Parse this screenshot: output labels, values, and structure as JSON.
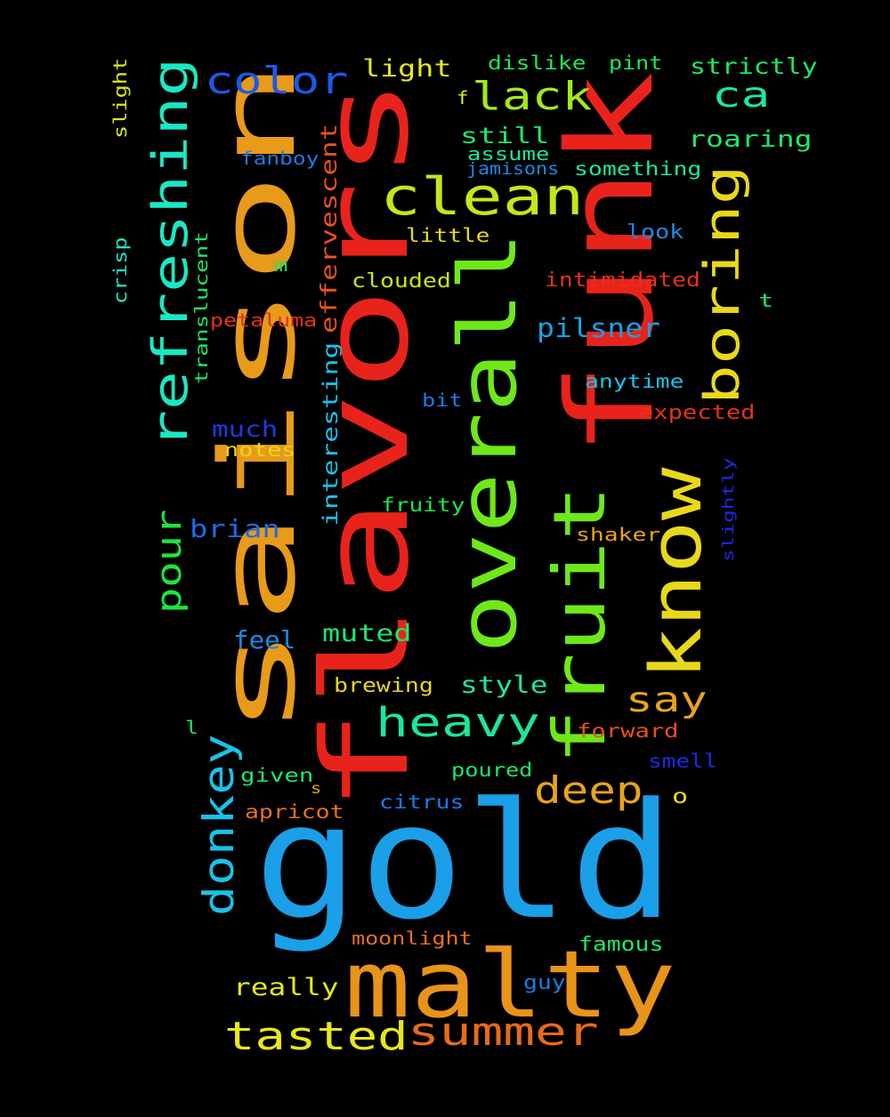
{
  "background_color": "#000000",
  "words": [
    {
      "text": "flavors",
      "color": "#e8231b",
      "vertical": true
    },
    {
      "text": "saison",
      "color": "#e89a1a",
      "vertical": true
    },
    {
      "text": "gold",
      "color": "#1a9fe8",
      "vertical": false
    },
    {
      "text": "funk",
      "color": "#e8231b",
      "vertical": true
    },
    {
      "text": "overall",
      "color": "#6ee81a",
      "vertical": true
    },
    {
      "text": "fruit",
      "color": "#6ee81a",
      "vertical": true
    },
    {
      "text": "malty",
      "color": "#e8931a",
      "vertical": false
    },
    {
      "text": "know",
      "color": "#e8d81a",
      "vertical": true
    },
    {
      "text": "refreshing",
      "color": "#1ae8c2",
      "vertical": true
    },
    {
      "text": "clean",
      "color": "#c2e81a",
      "vertical": false
    },
    {
      "text": "boring",
      "color": "#e8d81a",
      "vertical": true
    },
    {
      "text": "heavy",
      "color": "#1ae89a",
      "vertical": false
    },
    {
      "text": "summer",
      "color": "#e86b1a",
      "vertical": false
    },
    {
      "text": "tasted",
      "color": "#e8e81a",
      "vertical": false
    },
    {
      "text": "donkey",
      "color": "#1ac2e8",
      "vertical": true
    },
    {
      "text": "color",
      "color": "#1a5ae8",
      "vertical": false
    },
    {
      "text": "lack",
      "color": "#a4e81a",
      "vertical": false
    },
    {
      "text": "deep",
      "color": "#e8a41a",
      "vertical": false
    },
    {
      "text": "say",
      "color": "#e8a41a",
      "vertical": false
    },
    {
      "text": "ca",
      "color": "#1ae8a0",
      "vertical": false
    },
    {
      "text": "pour",
      "color": "#1ae83c",
      "vertical": true
    },
    {
      "text": "brian",
      "color": "#1a6be8",
      "vertical": false
    },
    {
      "text": "pilsner",
      "color": "#1aa0e8",
      "vertical": false
    },
    {
      "text": "effervescent",
      "color": "#e8521a",
      "vertical": true
    },
    {
      "text": "still",
      "color": "#1ae86b",
      "vertical": false
    },
    {
      "text": "light",
      "color": "#e8e81a",
      "vertical": false
    },
    {
      "text": "strictly",
      "color": "#1ae86b",
      "vertical": false
    },
    {
      "text": "roaring",
      "color": "#1ae86b",
      "vertical": false
    },
    {
      "text": "muted",
      "color": "#1ae86b",
      "vertical": false
    },
    {
      "text": "style",
      "color": "#1ae8a0",
      "vertical": false
    },
    {
      "text": "really",
      "color": "#e8e81a",
      "vertical": false
    },
    {
      "text": "much",
      "color": "#1a3ae8",
      "vertical": false
    },
    {
      "text": "interesting",
      "color": "#1ac2e8",
      "vertical": true
    },
    {
      "text": "dislike",
      "color": "#1ae85a",
      "vertical": false
    },
    {
      "text": "pint",
      "color": "#1ae85a",
      "vertical": false
    },
    {
      "text": "fanboy",
      "color": "#1a7ae8",
      "vertical": false
    },
    {
      "text": "assume",
      "color": "#1ae8a0",
      "vertical": false
    },
    {
      "text": "jamisons",
      "color": "#1a8ae8",
      "vertical": false
    },
    {
      "text": "something",
      "color": "#1ae8a0",
      "vertical": false
    },
    {
      "text": "look",
      "color": "#1a8ae8",
      "vertical": false
    },
    {
      "text": "little",
      "color": "#e8d81a",
      "vertical": false
    },
    {
      "text": "clouded",
      "color": "#c2e81a",
      "vertical": false
    },
    {
      "text": "intimidated",
      "color": "#e8311a",
      "vertical": false
    },
    {
      "text": "petaluma",
      "color": "#e8311a",
      "vertical": false
    },
    {
      "text": "translucent",
      "color": "#1ae86b",
      "vertical": true
    },
    {
      "text": "crisp",
      "color": "#1ae8c2",
      "vertical": true
    },
    {
      "text": "slight",
      "color": "#d8e81a",
      "vertical": true
    },
    {
      "text": "anytime",
      "color": "#1ac2e8",
      "vertical": false
    },
    {
      "text": "expected",
      "color": "#e8311a",
      "vertical": false
    },
    {
      "text": "bit",
      "color": "#1a7ae8",
      "vertical": false
    },
    {
      "text": "notes",
      "color": "#e8d81a",
      "vertical": false
    },
    {
      "text": "fruity",
      "color": "#1ae84a",
      "vertical": false
    },
    {
      "text": "shaker",
      "color": "#e8a41a",
      "vertical": false
    },
    {
      "text": "slightly",
      "color": "#1a2ae8",
      "vertical": true
    },
    {
      "text": "feel",
      "color": "#1a8ae8",
      "vertical": false
    },
    {
      "text": "brewing",
      "color": "#e8d81a",
      "vertical": false
    },
    {
      "text": "forward",
      "color": "#e8521a",
      "vertical": false
    },
    {
      "text": "smell",
      "color": "#1a2ae8",
      "vertical": false
    },
    {
      "text": "given",
      "color": "#1ae86b",
      "vertical": false
    },
    {
      "text": "poured",
      "color": "#1ae86b",
      "vertical": false
    },
    {
      "text": "apricot",
      "color": "#e8721a",
      "vertical": false
    },
    {
      "text": "citrus",
      "color": "#1a7ae8",
      "vertical": false
    },
    {
      "text": "moonlight",
      "color": "#e8721a",
      "vertical": false
    },
    {
      "text": "famous",
      "color": "#1ae86b",
      "vertical": false
    },
    {
      "text": "guy",
      "color": "#1a7ae8",
      "vertical": false
    },
    {
      "text": "f",
      "color": "#e8e81a",
      "vertical": false
    },
    {
      "text": "m",
      "color": "#1ae86b",
      "vertical": false
    },
    {
      "text": "t",
      "color": "#1ae86b",
      "vertical": false
    },
    {
      "text": "l",
      "color": "#1ae86b",
      "vertical": false
    },
    {
      "text": "s",
      "color": "#e8a41a",
      "vertical": false
    },
    {
      "text": "o",
      "color": "#e8d81a",
      "vertical": false
    }
  ]
}
